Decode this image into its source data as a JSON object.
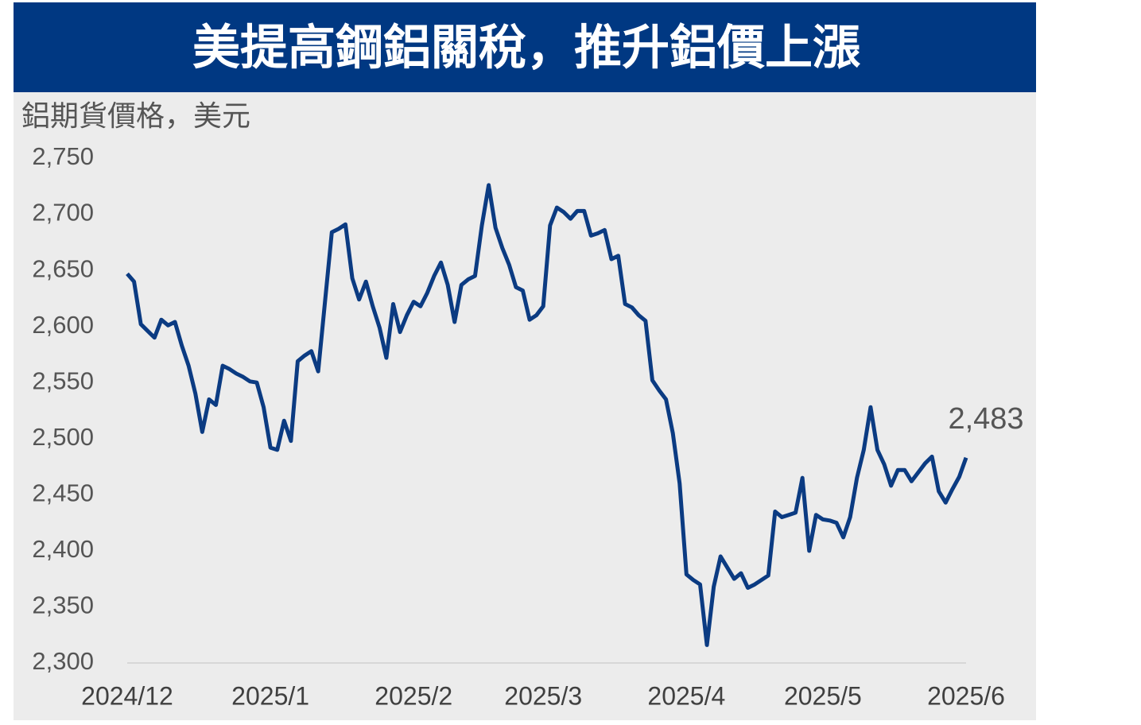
{
  "chart_data": {
    "type": "line",
    "title": "美提高鋼鋁關稅，推升鋁價上漲",
    "y_axis_title": "鋁期貨價格，美元",
    "categories": [
      "2024/12",
      null,
      null,
      null,
      null,
      null,
      null,
      null,
      null,
      null,
      null,
      null,
      null,
      null,
      null,
      null,
      null,
      null,
      null,
      null,
      null,
      "2025/1",
      null,
      null,
      null,
      null,
      null,
      null,
      null,
      null,
      null,
      null,
      null,
      null,
      null,
      null,
      null,
      null,
      null,
      null,
      null,
      null,
      "2025/2",
      null,
      null,
      null,
      null,
      null,
      null,
      null,
      null,
      null,
      null,
      null,
      null,
      null,
      null,
      null,
      null,
      null,
      null,
      "2025/3",
      null,
      null,
      null,
      null,
      null,
      null,
      null,
      null,
      null,
      null,
      null,
      null,
      null,
      null,
      null,
      null,
      null,
      null,
      null,
      null,
      "2025/4",
      null,
      null,
      null,
      null,
      null,
      null,
      null,
      null,
      null,
      null,
      null,
      null,
      null,
      null,
      null,
      null,
      null,
      null,
      null,
      "2025/5",
      null,
      null,
      null,
      null,
      null,
      null,
      null,
      null,
      null,
      null,
      null,
      null,
      null,
      null,
      null,
      null,
      null,
      null,
      null,
      null,
      "2025/6"
    ],
    "values": [
      2647,
      2640,
      2602,
      2596,
      2590,
      2606,
      2601,
      2604,
      2583,
      2565,
      2540,
      2506,
      2535,
      2530,
      2565,
      2562,
      2558,
      2555,
      2551,
      2550,
      2528,
      2492,
      2490,
      2516,
      2498,
      2569,
      2574,
      2578,
      2560,
      2622,
      2684,
      2687,
      2691,
      2643,
      2624,
      2640,
      2618,
      2599,
      2572,
      2620,
      2595,
      2610,
      2622,
      2618,
      2630,
      2645,
      2657,
      2637,
      2604,
      2637,
      2642,
      2645,
      2690,
      2726,
      2688,
      2670,
      2655,
      2635,
      2632,
      2606,
      2610,
      2618,
      2690,
      2706,
      2702,
      2696,
      2703,
      2703,
      2681,
      2683,
      2686,
      2660,
      2663,
      2620,
      2617,
      2610,
      2605,
      2552,
      2543,
      2535,
      2505,
      2460,
      2379,
      2374,
      2370,
      2316,
      2368,
      2395,
      2385,
      2375,
      2380,
      2367,
      2370,
      2374,
      2378,
      2435,
      2430,
      2432,
      2434,
      2465,
      2400,
      2432,
      2428,
      2427,
      2425,
      2412,
      2430,
      2465,
      2490,
      2528,
      2490,
      2477,
      2458,
      2472,
      2472,
      2462,
      2470,
      2478,
      2484,
      2453,
      2443,
      2455,
      2466,
      2483
    ],
    "value_labels": [
      null,
      null,
      null,
      null,
      null,
      null,
      null,
      null,
      null,
      null,
      null,
      null,
      null,
      null,
      null,
      null,
      null,
      null,
      null,
      null,
      null,
      null,
      null,
      null,
      null,
      null,
      null,
      null,
      null,
      null,
      null,
      null,
      null,
      null,
      null,
      null,
      null,
      null,
      null,
      null,
      null,
      null,
      null,
      null,
      null,
      null,
      null,
      null,
      null,
      null,
      null,
      null,
      null,
      null,
      null,
      null,
      null,
      null,
      null,
      null,
      null,
      null,
      null,
      null,
      null,
      null,
      null,
      null,
      null,
      null,
      null,
      null,
      null,
      null,
      null,
      null,
      null,
      null,
      null,
      null,
      null,
      null,
      null,
      null,
      null,
      null,
      null,
      null,
      null,
      null,
      null,
      null,
      null,
      null,
      null,
      null,
      null,
      null,
      null,
      null,
      null,
      null,
      null,
      null,
      null,
      null,
      null,
      null,
      null,
      null,
      null,
      null,
      null,
      null,
      null,
      null,
      null,
      null,
      null,
      null,
      null,
      null,
      null,
      "2,483"
    ],
    "color": "#0b3b82",
    "ylim": [
      2300,
      2750
    ],
    "yticks": [
      {
        "value": 2300,
        "label": "2,300"
      },
      {
        "value": 2350,
        "label": "2,350"
      },
      {
        "value": 2400,
        "label": "2,400"
      },
      {
        "value": 2450,
        "label": "2,450"
      },
      {
        "value": 2500,
        "label": "2,500"
      },
      {
        "value": 2550,
        "label": "2,550"
      },
      {
        "value": 2600,
        "label": "2,600"
      },
      {
        "value": 2650,
        "label": "2,650"
      },
      {
        "value": 2700,
        "label": "2,700"
      },
      {
        "value": 2750,
        "label": "2,750"
      }
    ],
    "grid": false
  }
}
